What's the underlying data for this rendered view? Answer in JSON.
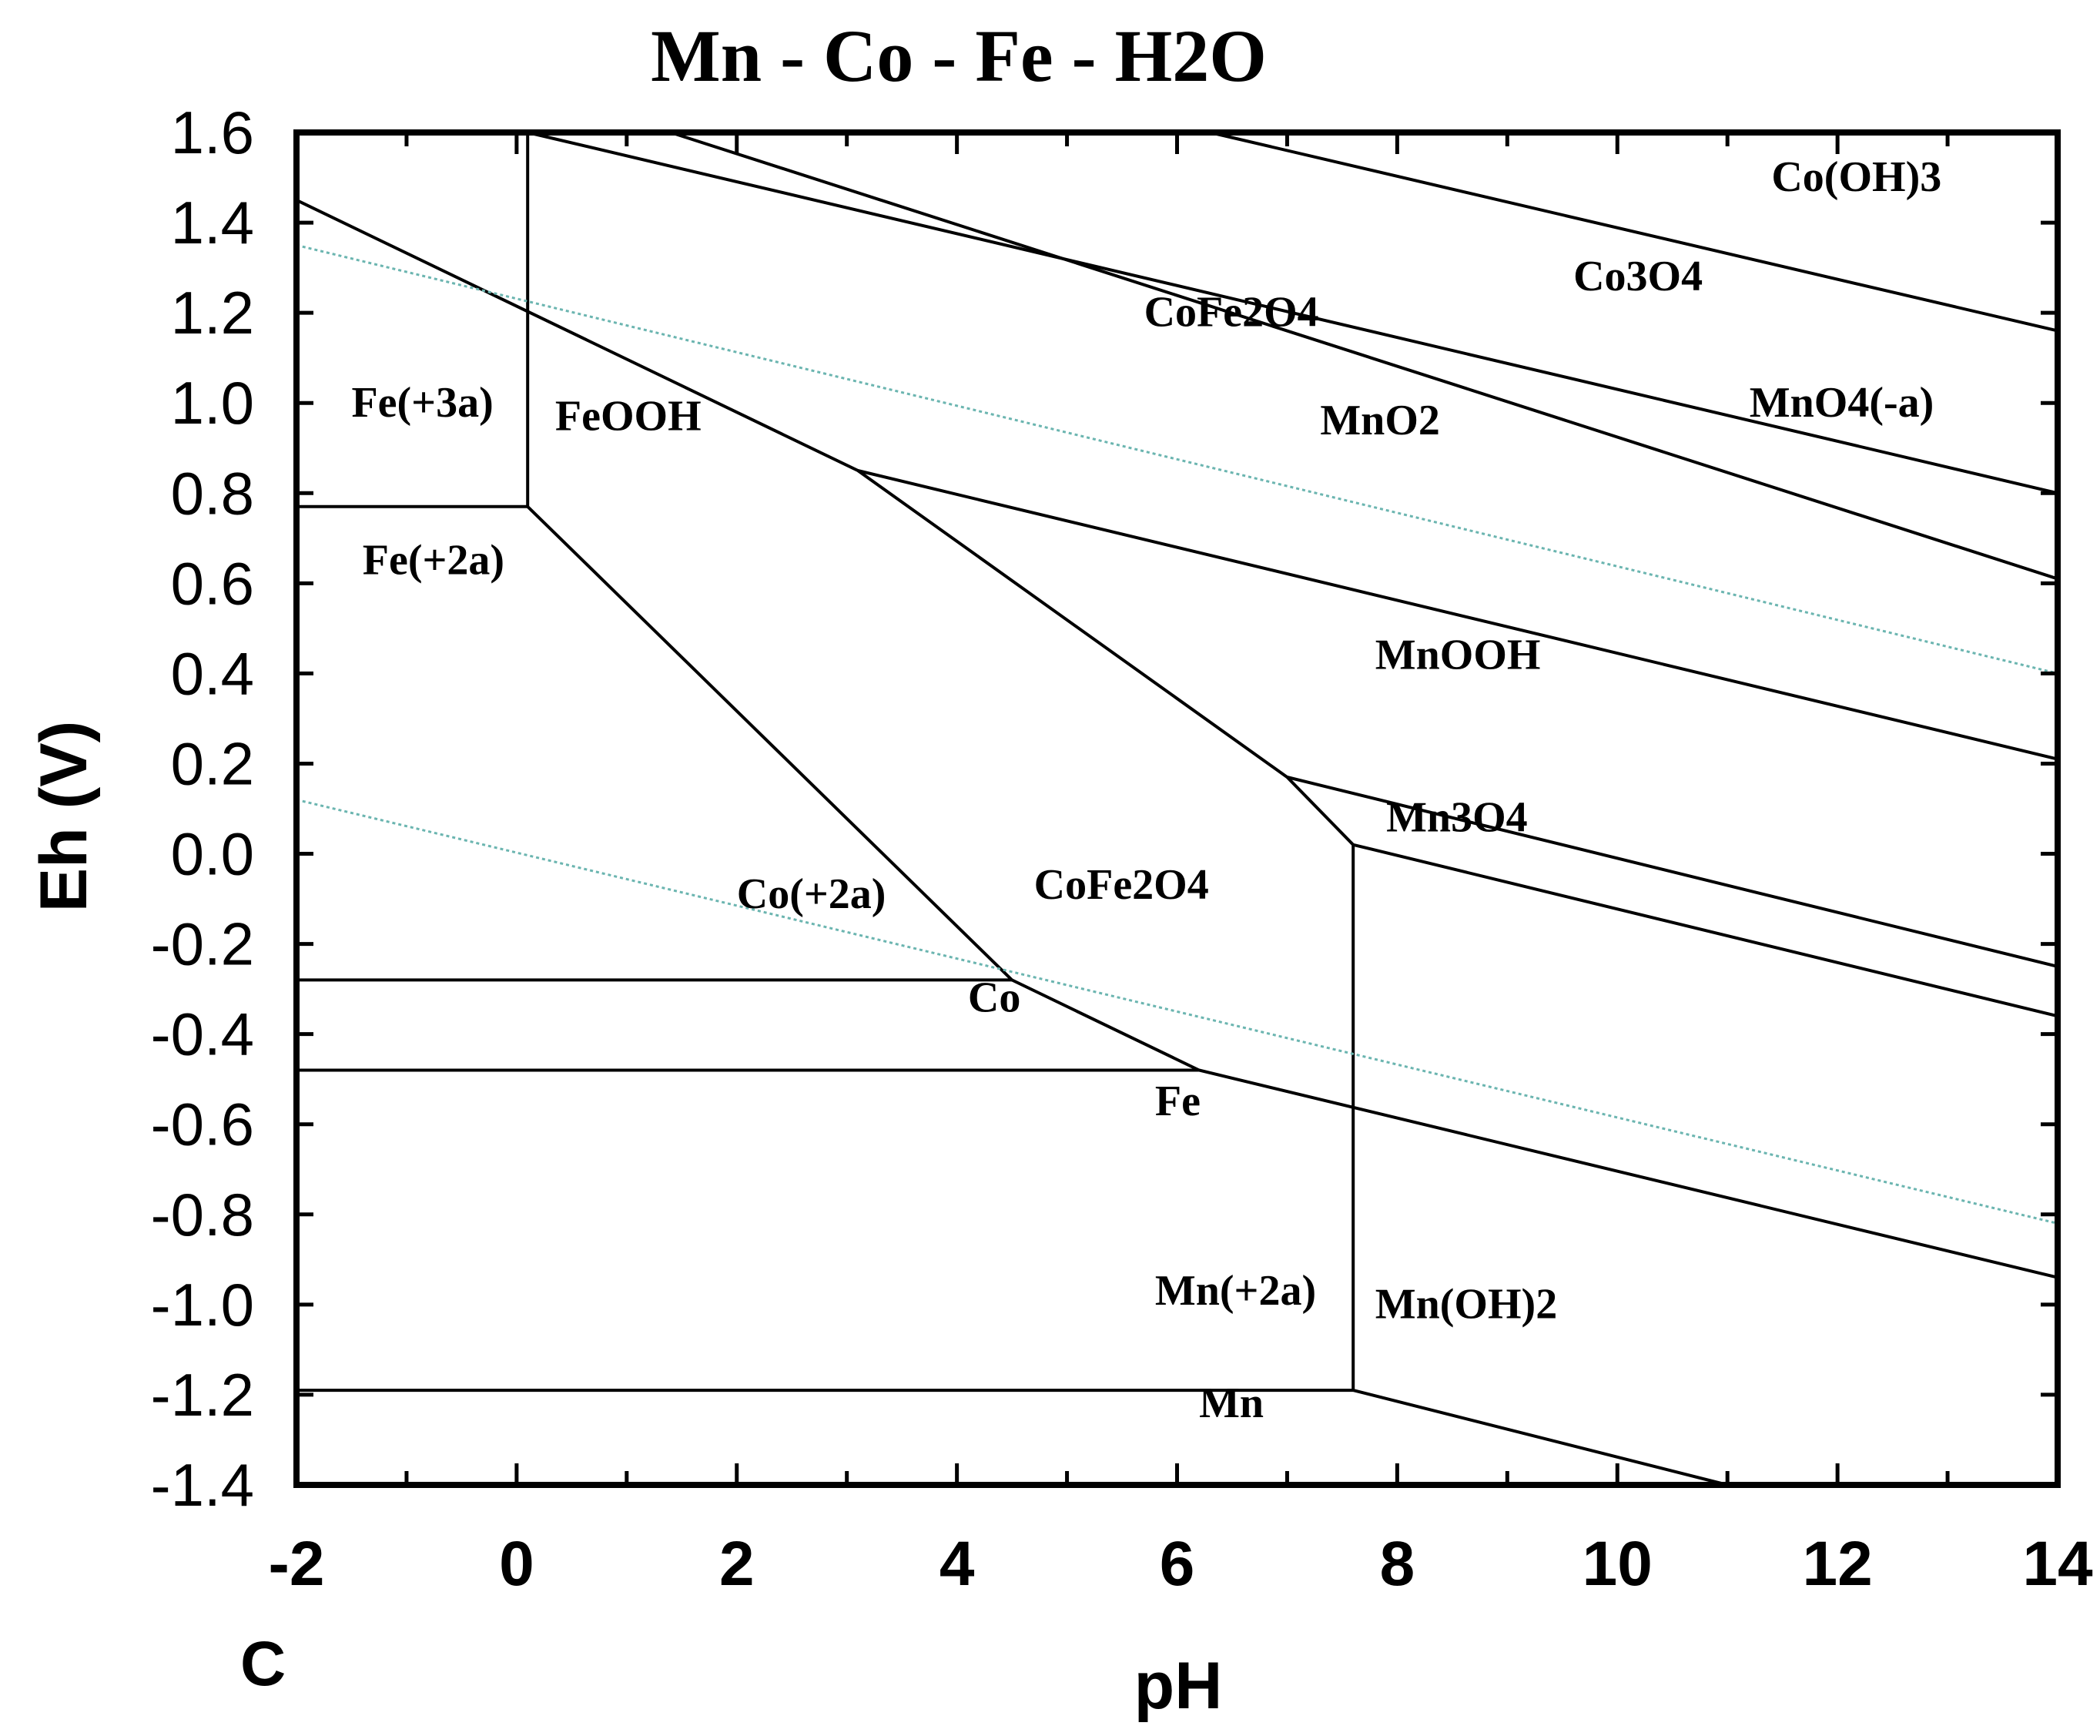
{
  "chart_data": {
    "type": "phase-diagram",
    "title": "Mn - Co - Fe - H2O",
    "xlabel": "pH",
    "ylabel": "Eh (V)",
    "panel_label": "C",
    "xlim": [
      -2,
      14
    ],
    "ylim": [
      -1.4,
      1.6
    ],
    "x_ticks": [
      -2,
      0,
      2,
      4,
      6,
      8,
      10,
      12,
      14
    ],
    "x_tick_labels": [
      "-2",
      "0",
      "2",
      "4",
      "6",
      "8",
      "10",
      "12",
      "14"
    ],
    "y_ticks": [
      1.6,
      1.4,
      1.2,
      1.0,
      0.8,
      0.6,
      0.4,
      0.2,
      0.0,
      -0.2,
      -0.4,
      -0.6,
      -0.8,
      -1.0,
      -1.2,
      -1.4
    ],
    "y_tick_labels": [
      "1.6",
      "1.4",
      "1.2",
      "1.0",
      "0.8",
      "0.6",
      "0.4",
      "0.2",
      "0.0",
      "-0.2",
      "-0.4",
      "-0.6",
      "-0.8",
      "-1.0",
      "-1.2",
      "-1.4"
    ],
    "boundaries": [
      [
        [
          -2,
          1.45
        ],
        [
          3.1,
          0.85
        ],
        [
          7,
          0.17
        ],
        [
          7.6,
          0.02
        ],
        [
          7.6,
          -1.19
        ],
        [
          11,
          -1.4
        ]
      ],
      [
        [
          0.1,
          1.6
        ],
        [
          0.1,
          0.77
        ],
        [
          -2,
          0.77
        ]
      ],
      [
        [
          0.1,
          0.77
        ],
        [
          4.5,
          -0.28
        ],
        [
          6.2,
          -0.48
        ],
        [
          14,
          -0.94
        ]
      ],
      [
        [
          -2,
          -0.28
        ],
        [
          4.5,
          -0.28
        ]
      ],
      [
        [
          -2,
          -0.48
        ],
        [
          6.2,
          -0.48
        ]
      ],
      [
        [
          -2,
          -1.19
        ],
        [
          7.6,
          -1.19
        ]
      ],
      [
        [
          3.1,
          0.85
        ],
        [
          14,
          0.21
        ]
      ],
      [
        [
          7,
          0.17
        ],
        [
          14,
          -0.25
        ]
      ],
      [
        [
          7.6,
          0.02
        ],
        [
          14,
          -0.36
        ]
      ],
      [
        [
          0.1,
          1.6
        ],
        [
          14,
          0.8
        ]
      ],
      [
        [
          1.4,
          1.6
        ],
        [
          14,
          0.61
        ]
      ],
      [
        [
          6.3,
          1.6
        ],
        [
          14,
          1.16
        ]
      ]
    ],
    "water_lines": [
      [
        [
          -2,
          1.35
        ],
        [
          14,
          0.4
        ]
      ],
      [
        [
          -2,
          0.12
        ],
        [
          14,
          -0.82
        ]
      ]
    ],
    "regions": [
      {
        "label": "Fe(+3a)",
        "pH": -1.5,
        "Eh": 0.97
      },
      {
        "label": "FeOOH",
        "pH": 0.35,
        "Eh": 0.94
      },
      {
        "label": "Fe(+2a)",
        "pH": -1.4,
        "Eh": 0.62
      },
      {
        "label": "CoFe2O4",
        "pH": 5.7,
        "Eh": 1.17
      },
      {
        "label": "Co3O4",
        "pH": 9.6,
        "Eh": 1.25
      },
      {
        "label": "Co(OH)3",
        "pH": 11.4,
        "Eh": 1.47
      },
      {
        "label": "MnO2",
        "pH": 7.3,
        "Eh": 0.93
      },
      {
        "label": "MnO4(-a)",
        "pH": 11.2,
        "Eh": 0.97
      },
      {
        "label": "MnOOH",
        "pH": 7.8,
        "Eh": 0.41
      },
      {
        "label": "Mn3O4",
        "pH": 7.9,
        "Eh": 0.05
      },
      {
        "label": "Co(+2a)",
        "pH": 2.0,
        "Eh": -0.12
      },
      {
        "label": "CoFe2O4",
        "pH": 4.7,
        "Eh": -0.1
      },
      {
        "label": "Co",
        "pH": 4.1,
        "Eh": -0.35
      },
      {
        "label": "Fe",
        "pH": 5.8,
        "Eh": -0.58
      },
      {
        "label": "Mn(+2a)",
        "pH": 5.8,
        "Eh": -1.0
      },
      {
        "label": "Mn(OH)2",
        "pH": 7.8,
        "Eh": -1.03
      },
      {
        "label": "Mn",
        "pH": 6.2,
        "Eh": -1.25
      }
    ]
  }
}
